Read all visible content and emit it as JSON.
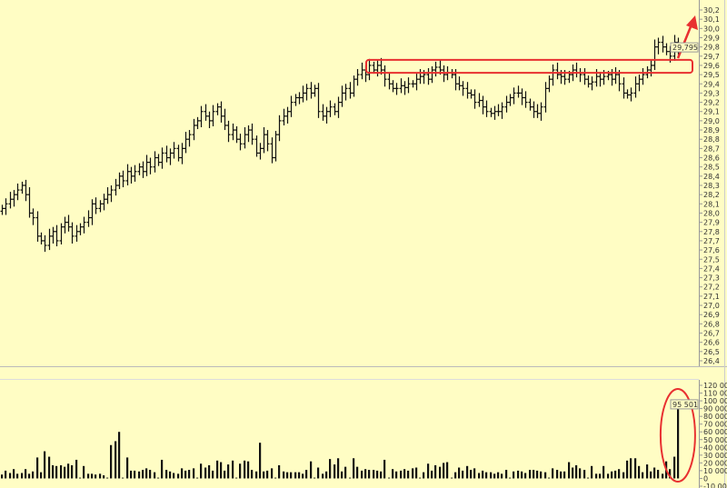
{
  "chart_data": [
    {
      "type": "ohlc-bar",
      "panel": "price",
      "yticks": [
        "30,2",
        "30,1",
        "30,0",
        "29,9",
        "29,8",
        "29,7",
        "29,6",
        "29,5",
        "29,4",
        "29,3",
        "29,2",
        "29,1",
        "29,0",
        "28,9",
        "28,8",
        "28,7",
        "28,6",
        "28,5",
        "28,4",
        "28,3",
        "28,2",
        "28,1",
        "28,0",
        "27,9",
        "27,8",
        "27,7",
        "27,6",
        "27,5",
        "27,4",
        "27,3",
        "27,2",
        "27,1",
        "27,0",
        "26,9",
        "26,8",
        "26,7",
        "26,6",
        "26,5",
        "26,4"
      ],
      "ylim": [
        26.4,
        30.2
      ],
      "last_price_label": "29,795",
      "closes": [
        28.05,
        28.1,
        28.15,
        28.2,
        28.25,
        28.3,
        28.2,
        28.0,
        27.95,
        27.75,
        27.7,
        27.65,
        27.75,
        27.8,
        27.7,
        27.85,
        27.9,
        27.85,
        27.75,
        27.8,
        27.85,
        27.9,
        27.95,
        28.1,
        28.05,
        28.1,
        28.15,
        28.2,
        28.25,
        28.3,
        28.4,
        28.35,
        28.45,
        28.4,
        28.45,
        28.5,
        28.45,
        28.55,
        28.5,
        28.6,
        28.55,
        28.65,
        28.6,
        28.65,
        28.7,
        28.6,
        28.7,
        28.8,
        28.85,
        28.95,
        29.0,
        29.1,
        29.05,
        29.0,
        29.1,
        29.15,
        29.05,
        28.95,
        28.85,
        28.9,
        28.8,
        28.75,
        28.85,
        28.9,
        28.8,
        28.65,
        28.7,
        28.85,
        28.75,
        28.6,
        28.85,
        29.0,
        29.05,
        29.1,
        29.2,
        29.25,
        29.25,
        29.3,
        29.35,
        29.3,
        29.35,
        29.1,
        29.05,
        29.1,
        29.15,
        29.1,
        29.2,
        29.3,
        29.35,
        29.3,
        29.45,
        29.5,
        29.55,
        29.5,
        29.6,
        29.55,
        29.6,
        29.55,
        29.45,
        29.4,
        29.35,
        29.35,
        29.38,
        29.36,
        29.4,
        29.4,
        29.45,
        29.48,
        29.5,
        29.45,
        29.55,
        29.58,
        29.55,
        29.5,
        29.52,
        29.5,
        29.4,
        29.38,
        29.35,
        29.3,
        29.28,
        29.2,
        29.22,
        29.15,
        29.1,
        29.08,
        29.1,
        29.1,
        29.15,
        29.2,
        29.25,
        29.3,
        29.3,
        29.25,
        29.2,
        29.15,
        29.1,
        29.08,
        29.15,
        29.35,
        29.45,
        29.55,
        29.5,
        29.48,
        29.45,
        29.5,
        29.55,
        29.52,
        29.5,
        29.45,
        29.4,
        29.42,
        29.48,
        29.45,
        29.48,
        29.5,
        29.45,
        29.5,
        29.4,
        29.3,
        29.28,
        29.3,
        29.4,
        29.45,
        29.5,
        29.55,
        29.6,
        29.8,
        29.85,
        29.8,
        29.75,
        29.7,
        29.85,
        29.795
      ],
      "annotations": {
        "resistance_box": [
          29.52,
          29.66
        ],
        "color": "#e83030"
      }
    },
    {
      "type": "bar",
      "panel": "volume",
      "yticks": [
        "120 000",
        "110 000",
        "100 000",
        "90 000",
        "80 000",
        "70 000",
        "60 000",
        "50 000",
        "40 000",
        "30 000",
        "20 000",
        "10 000",
        "0",
        "-10 000"
      ],
      "ylim": [
        -10000,
        120000
      ],
      "last_volume_label": "95 501",
      "values": [
        5000,
        10000,
        7000,
        12000,
        6000,
        7000,
        12000,
        6000,
        9000,
        27000,
        8000,
        35000,
        28000,
        17000,
        16000,
        17000,
        15000,
        19000,
        17000,
        24000,
        1000,
        16000,
        6000,
        6000,
        5000,
        6000,
        4000,
        1000,
        43000,
        48000,
        60000,
        1000,
        27000,
        10000,
        10000,
        9000,
        11000,
        13000,
        11000,
        8000,
        1000,
        24000,
        11000,
        9000,
        7000,
        6000,
        13000,
        10000,
        11000,
        13000,
        1000,
        19000,
        14000,
        17000,
        10000,
        23000,
        21000,
        10000,
        18000,
        23000,
        1000,
        19000,
        23000,
        22000,
        11000,
        9000,
        46000,
        9000,
        10000,
        13000,
        1000,
        17000,
        9000,
        8000,
        8000,
        8000,
        8000,
        6000,
        11000,
        22000,
        1000,
        14000,
        6000,
        9000,
        25000,
        18000,
        26000,
        9000,
        15000,
        1000,
        26000,
        15000,
        10000,
        12000,
        11000,
        11000,
        10000,
        9000,
        24000,
        1000,
        12000,
        9000,
        10000,
        12000,
        10000,
        13000,
        14000,
        1000,
        8000,
        19000,
        10000,
        17000,
        15000,
        20000,
        21000,
        1000,
        8000,
        14000,
        10000,
        16000,
        11000,
        13000,
        7000,
        10000,
        8000,
        8000,
        6000,
        8000,
        6000,
        11000,
        1000,
        9000,
        10000,
        9000,
        7000,
        11000,
        11000,
        10000,
        9000,
        8000,
        1000,
        13000,
        11000,
        9000,
        9000,
        21000,
        14000,
        17000,
        13000,
        11000,
        1000,
        16000,
        6000,
        6000,
        16000,
        6000,
        9000,
        10000,
        12000,
        8000,
        23000,
        26000,
        26000,
        16000,
        8000,
        18000,
        9000,
        14000,
        11000,
        6000,
        22000,
        12000,
        28000,
        95501
      ],
      "annotations": {
        "highlight_ellipse": "last bar",
        "color": "#e83030"
      }
    }
  ],
  "colors": {
    "background": "#fffdc4",
    "bars": "#111111",
    "annotation": "#e83030",
    "axis": "#999999"
  }
}
